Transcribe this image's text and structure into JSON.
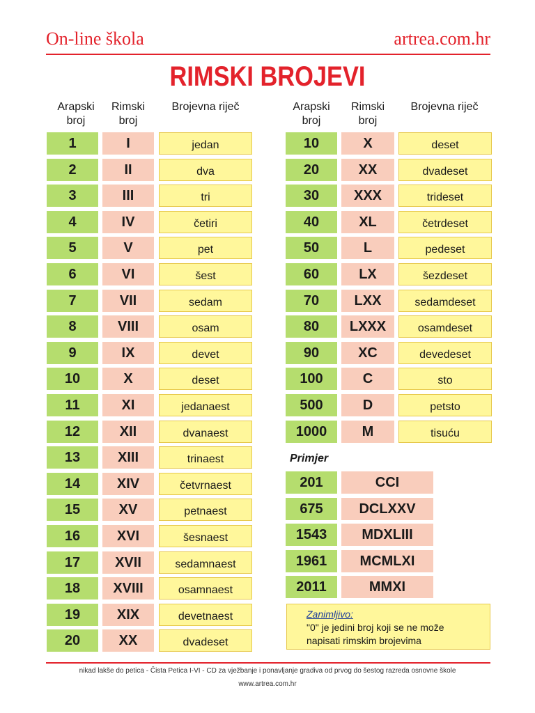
{
  "header": {
    "left": "On-line škola",
    "right": "artrea.com.hr",
    "title": "RIMSKI BROJEVI"
  },
  "columns": {
    "arabic": "Arapski broj",
    "roman": "Rimski broj",
    "word": "Brojevna riječ"
  },
  "left_table": [
    {
      "a": "1",
      "r": "I",
      "w": "jedan"
    },
    {
      "a": "2",
      "r": "II",
      "w": "dva"
    },
    {
      "a": "3",
      "r": "III",
      "w": "tri"
    },
    {
      "a": "4",
      "r": "IV",
      "w": "četiri"
    },
    {
      "a": "5",
      "r": "V",
      "w": "pet"
    },
    {
      "a": "6",
      "r": "VI",
      "w": "šest"
    },
    {
      "a": "7",
      "r": "VII",
      "w": "sedam"
    },
    {
      "a": "8",
      "r": "VIII",
      "w": "osam"
    },
    {
      "a": "9",
      "r": "IX",
      "w": "devet"
    },
    {
      "a": "10",
      "r": "X",
      "w": "deset"
    },
    {
      "a": "11",
      "r": "XI",
      "w": "jedanaest"
    },
    {
      "a": "12",
      "r": "XII",
      "w": "dvanaest"
    },
    {
      "a": "13",
      "r": "XIII",
      "w": "trinaest"
    },
    {
      "a": "14",
      "r": "XIV",
      "w": "četvrnaest"
    },
    {
      "a": "15",
      "r": "XV",
      "w": "petnaest"
    },
    {
      "a": "16",
      "r": "XVI",
      "w": "šesnaest"
    },
    {
      "a": "17",
      "r": "XVII",
      "w": "sedamnaest"
    },
    {
      "a": "18",
      "r": "XVIII",
      "w": "osamnaest"
    },
    {
      "a": "19",
      "r": "XIX",
      "w": "devetnaest"
    },
    {
      "a": "20",
      "r": "XX",
      "w": "dvadeset"
    }
  ],
  "right_table": [
    {
      "a": "10",
      "r": "X",
      "w": "deset"
    },
    {
      "a": "20",
      "r": "XX",
      "w": "dvadeset"
    },
    {
      "a": "30",
      "r": "XXX",
      "w": "trideset"
    },
    {
      "a": "40",
      "r": "XL",
      "w": "četrdeset"
    },
    {
      "a": "50",
      "r": "L",
      "w": "pedeset"
    },
    {
      "a": "60",
      "r": "LX",
      "w": "šezdeset"
    },
    {
      "a": "70",
      "r": "LXX",
      "w": "sedamdeset"
    },
    {
      "a": "80",
      "r": "LXXX",
      "w": "osamdeset"
    },
    {
      "a": "90",
      "r": "XC",
      "w": "devedeset"
    },
    {
      "a": "100",
      "r": "C",
      "w": "sto"
    },
    {
      "a": "500",
      "r": "D",
      "w": "petsto"
    },
    {
      "a": "1000",
      "r": "M",
      "w": "tisuću"
    }
  ],
  "examples": {
    "label": "Primjer",
    "rows": [
      {
        "a": "201",
        "r": "CCI"
      },
      {
        "a": "675",
        "r": "DCLXXV"
      },
      {
        "a": "1543",
        "r": "MDXLIII"
      },
      {
        "a": "1961",
        "r": "MCMLXI"
      },
      {
        "a": "2011",
        "r": "MMXI"
      }
    ]
  },
  "note": {
    "title": "Zanimljivo:",
    "text": "\"0\" je jedini broj koji se ne može napisati rimskim brojevima"
  },
  "footer": {
    "text": "nikad lakše do petica - Čista Petica I-VI - CD za vježbanje i ponavljanje gradiva od prvog do šestog razreda osnovne škole",
    "url": "www.artrea.com.hr"
  },
  "colors": {
    "red": "#e3222b",
    "green": "#b5dd6e",
    "pink": "#f9cdbc",
    "yellow": "#fff79b"
  }
}
